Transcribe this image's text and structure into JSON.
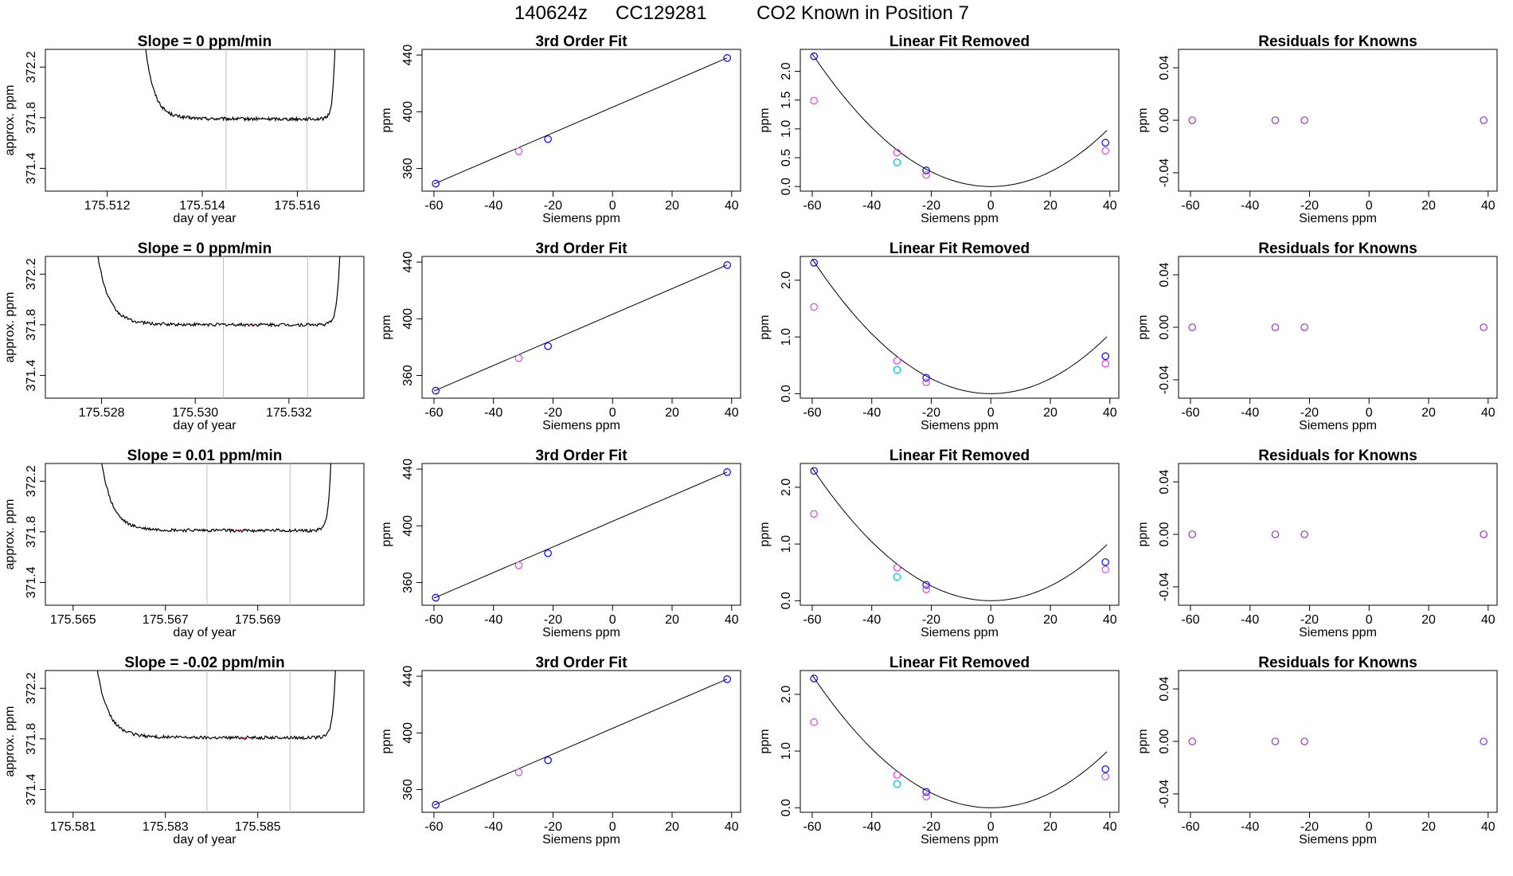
{
  "figure": {
    "title_parts": [
      "140624z",
      "CC129281",
      "CO2 Known in Position  7"
    ]
  },
  "colors": {
    "trace": "#000000",
    "vline": "#bebebe",
    "blue": "#0000ff",
    "magenta": "#dd44dd",
    "cyan": "#00bcd4",
    "purple": "#9a32cd"
  },
  "chart_data": [
    {
      "type": "line",
      "row": 0,
      "title": "Slope =  0  ppm/min",
      "xlabel": "day of year",
      "ylabel": "approx. ppm",
      "xlim": [
        175.5107,
        175.5174
      ],
      "ylim": [
        371.22,
        372.34
      ],
      "xticks": [
        175.512,
        175.514,
        175.516
      ],
      "xtick_labels": [
        "175.512",
        "175.514",
        "175.516"
      ],
      "yticks": [
        371.4,
        371.8,
        372.2
      ],
      "ytick_labels": [
        "371.4",
        "371.8",
        "372.2"
      ],
      "plateau": 371.79,
      "trace_start": 175.5128,
      "trace_end": 175.5168,
      "vlines": [
        175.5145,
        175.5162
      ],
      "red_marker": 175.5152
    },
    {
      "type": "scatter",
      "row": 0,
      "title": "3rd Order Fit",
      "xlabel": "Siemens ppm",
      "ylabel": "ppm",
      "xlim": [
        -64,
        43
      ],
      "ylim": [
        344,
        444
      ],
      "xticks": [
        -60,
        -40,
        -20,
        0,
        20,
        40
      ],
      "xtick_labels": [
        "-60",
        "-40",
        "-20",
        "0",
        "20",
        "40"
      ],
      "yticks": [
        360,
        400,
        440
      ],
      "ytick_labels": [
        "360",
        "400",
        "440"
      ],
      "line": [
        [
          -60,
          349
        ],
        [
          38.5,
          438
        ]
      ],
      "points": [
        {
          "x": -59.4,
          "y": 349.3,
          "color": "blue"
        },
        {
          "x": -31.5,
          "y": 372.2,
          "color": "magenta"
        },
        {
          "x": -21.7,
          "y": 380.7,
          "color": "blue"
        },
        {
          "x": 38.5,
          "y": 437.9,
          "color": "blue"
        }
      ]
    },
    {
      "type": "scatter",
      "row": 0,
      "title": "Linear Fit Removed",
      "xlabel": "Siemens ppm",
      "ylabel": "ppm",
      "xlim": [
        -64,
        43
      ],
      "ylim": [
        -0.08,
        2.38
      ],
      "xticks": [
        -60,
        -40,
        -20,
        0,
        20,
        40
      ],
      "xtick_labels": [
        "-60",
        "-40",
        "-20",
        "0",
        "20",
        "40"
      ],
      "yticks": [
        0.0,
        0.5,
        1.0,
        1.5,
        2.0
      ],
      "ytick_labels": [
        "0.0",
        "0.5",
        "1.0",
        "1.5",
        "2.0"
      ],
      "curve_coef": 0.00064,
      "points": [
        {
          "x": -59.4,
          "y": 2.26,
          "color": "blue"
        },
        {
          "x": -59.4,
          "y": 1.49,
          "color": "magenta"
        },
        {
          "x": -31.5,
          "y": 0.59,
          "color": "magenta"
        },
        {
          "x": -31.5,
          "y": 0.42,
          "color": "cyan"
        },
        {
          "x": -21.7,
          "y": 0.28,
          "color": "blue"
        },
        {
          "x": -21.7,
          "y": 0.2,
          "color": "magenta"
        },
        {
          "x": 38.5,
          "y": 0.76,
          "color": "blue"
        },
        {
          "x": 38.5,
          "y": 0.62,
          "color": "magenta"
        }
      ]
    },
    {
      "type": "scatter",
      "row": 0,
      "title": "Residuals for Knowns",
      "xlabel": "Siemens ppm",
      "ylabel": "ppm",
      "xlim": [
        -64,
        43
      ],
      "ylim": [
        -0.054,
        0.054
      ],
      "xticks": [
        -60,
        -40,
        -20,
        0,
        20,
        40
      ],
      "xtick_labels": [
        "-60",
        "-40",
        "-20",
        "0",
        "20",
        "40"
      ],
      "yticks": [
        -0.04,
        0.0,
        0.04
      ],
      "ytick_labels": [
        "-0.04",
        "0.00",
        "0.04"
      ],
      "points": [
        {
          "x": -59.4,
          "y": 0,
          "color": "purple"
        },
        {
          "x": -31.5,
          "y": 0,
          "color": "purple"
        },
        {
          "x": -21.7,
          "y": 0,
          "color": "purple"
        },
        {
          "x": 38.5,
          "y": 0,
          "color": "purple"
        }
      ]
    },
    {
      "type": "line",
      "row": 1,
      "title": "Slope =  0  ppm/min",
      "xlabel": "day of year",
      "ylabel": "approx. ppm",
      "xlim": [
        175.5268,
        175.5336
      ],
      "ylim": [
        371.22,
        372.34
      ],
      "xticks": [
        175.528,
        175.53,
        175.532
      ],
      "xtick_labels": [
        "175.528",
        "175.530",
        "175.532"
      ],
      "yticks": [
        371.4,
        371.8,
        372.2
      ],
      "ytick_labels": [
        "371.4",
        "371.8",
        "372.2"
      ],
      "plateau": 371.8,
      "trace_start": 175.5279,
      "trace_end": 175.5331,
      "vlines": [
        175.5306,
        175.5324
      ],
      "red_marker": 175.5312
    },
    {
      "type": "scatter",
      "row": 1,
      "title": "3rd Order Fit",
      "xlabel": "Siemens ppm",
      "ylabel": "ppm",
      "xlim": [
        -64,
        43
      ],
      "ylim": [
        344,
        444
      ],
      "xticks": [
        -60,
        -40,
        -20,
        0,
        20,
        40
      ],
      "xtick_labels": [
        "-60",
        "-40",
        "-20",
        "0",
        "20",
        "40"
      ],
      "yticks": [
        360,
        400,
        440
      ],
      "ytick_labels": [
        "360",
        "400",
        "440"
      ],
      "line": [
        [
          -60,
          349
        ],
        [
          38.5,
          438
        ]
      ],
      "points": [
        {
          "x": -59.4,
          "y": 349.3,
          "color": "blue"
        },
        {
          "x": -31.5,
          "y": 372.2,
          "color": "magenta"
        },
        {
          "x": -21.7,
          "y": 380.7,
          "color": "blue"
        },
        {
          "x": 38.5,
          "y": 437.9,
          "color": "blue"
        }
      ]
    },
    {
      "type": "scatter",
      "row": 1,
      "title": "Linear Fit Removed",
      "xlabel": "Siemens ppm",
      "ylabel": "ppm",
      "xlim": [
        -64,
        43
      ],
      "ylim": [
        -0.08,
        2.42
      ],
      "xticks": [
        -60,
        -40,
        -20,
        0,
        20,
        40
      ],
      "xtick_labels": [
        "-60",
        "-40",
        "-20",
        "0",
        "20",
        "40"
      ],
      "yticks": [
        0.0,
        1.0,
        2.0
      ],
      "ytick_labels": [
        "0.0",
        "1.0",
        "2.0"
      ],
      "curve_coef": 0.00066,
      "points": [
        {
          "x": -59.4,
          "y": 2.31,
          "color": "blue"
        },
        {
          "x": -59.4,
          "y": 1.53,
          "color": "magenta"
        },
        {
          "x": -31.5,
          "y": 0.58,
          "color": "magenta"
        },
        {
          "x": -31.5,
          "y": 0.42,
          "color": "cyan"
        },
        {
          "x": -21.7,
          "y": 0.28,
          "color": "blue"
        },
        {
          "x": -21.7,
          "y": 0.2,
          "color": "magenta"
        },
        {
          "x": 38.5,
          "y": 0.66,
          "color": "blue"
        },
        {
          "x": 38.5,
          "y": 0.53,
          "color": "magenta"
        }
      ]
    },
    {
      "type": "scatter",
      "row": 1,
      "title": "Residuals for Knowns",
      "xlabel": "Siemens ppm",
      "ylabel": "ppm",
      "xlim": [
        -64,
        43
      ],
      "ylim": [
        -0.054,
        0.054
      ],
      "xticks": [
        -60,
        -40,
        -20,
        0,
        20,
        40
      ],
      "xtick_labels": [
        "-60",
        "-40",
        "-20",
        "0",
        "20",
        "40"
      ],
      "yticks": [
        -0.04,
        0.0,
        0.04
      ],
      "ytick_labels": [
        "-0.04",
        "0.00",
        "0.04"
      ],
      "points": [
        {
          "x": -59.4,
          "y": 0,
          "color": "purple"
        },
        {
          "x": -31.5,
          "y": 0,
          "color": "purple"
        },
        {
          "x": -21.7,
          "y": 0,
          "color": "purple"
        },
        {
          "x": 38.5,
          "y": 0,
          "color": "purple"
        }
      ]
    },
    {
      "type": "line",
      "row": 2,
      "title": "Slope =  0.01  ppm/min",
      "xlabel": "day of year",
      "ylabel": "approx. ppm",
      "xlim": [
        175.5644,
        175.5713
      ],
      "ylim": [
        371.22,
        372.34
      ],
      "xticks": [
        175.565,
        175.567,
        175.569
      ],
      "xtick_labels": [
        "175.565",
        "175.567",
        "175.569"
      ],
      "yticks": [
        371.4,
        371.8,
        372.2
      ],
      "ytick_labels": [
        "371.4",
        "371.8",
        "372.2"
      ],
      "plateau": 371.81,
      "trace_start": 175.5656,
      "trace_end": 175.5706,
      "vlines": [
        175.5679,
        175.5697
      ],
      "red_marker": 175.5686
    },
    {
      "type": "scatter",
      "row": 2,
      "title": "3rd Order Fit",
      "xlabel": "Siemens ppm",
      "ylabel": "ppm",
      "xlim": [
        -64,
        43
      ],
      "ylim": [
        344,
        444
      ],
      "xticks": [
        -60,
        -40,
        -20,
        0,
        20,
        40
      ],
      "xtick_labels": [
        "-60",
        "-40",
        "-20",
        "0",
        "20",
        "40"
      ],
      "yticks": [
        360,
        400,
        440
      ],
      "ytick_labels": [
        "360",
        "400",
        "440"
      ],
      "line": [
        [
          -60,
          349
        ],
        [
          38.5,
          438
        ]
      ],
      "points": [
        {
          "x": -59.4,
          "y": 349.3,
          "color": "blue"
        },
        {
          "x": -31.5,
          "y": 372.2,
          "color": "magenta"
        },
        {
          "x": -21.7,
          "y": 380.7,
          "color": "blue"
        },
        {
          "x": 38.5,
          "y": 437.9,
          "color": "blue"
        }
      ]
    },
    {
      "type": "scatter",
      "row": 2,
      "title": "Linear Fit Removed",
      "xlabel": "Siemens ppm",
      "ylabel": "ppm",
      "xlim": [
        -64,
        43
      ],
      "ylim": [
        -0.08,
        2.42
      ],
      "xticks": [
        -60,
        -40,
        -20,
        0,
        20,
        40
      ],
      "xtick_labels": [
        "-60",
        "-40",
        "-20",
        "0",
        "20",
        "40"
      ],
      "yticks": [
        0.0,
        1.0,
        2.0
      ],
      "ytick_labels": [
        "0.0",
        "1.0",
        "2.0"
      ],
      "curve_coef": 0.00065,
      "points": [
        {
          "x": -59.4,
          "y": 2.29,
          "color": "blue"
        },
        {
          "x": -59.4,
          "y": 1.53,
          "color": "magenta"
        },
        {
          "x": -31.5,
          "y": 0.58,
          "color": "magenta"
        },
        {
          "x": -31.5,
          "y": 0.42,
          "color": "cyan"
        },
        {
          "x": -21.7,
          "y": 0.28,
          "color": "blue"
        },
        {
          "x": -21.7,
          "y": 0.2,
          "color": "magenta"
        },
        {
          "x": 38.5,
          "y": 0.68,
          "color": "blue"
        },
        {
          "x": 38.5,
          "y": 0.55,
          "color": "magenta"
        }
      ]
    },
    {
      "type": "scatter",
      "row": 2,
      "title": "Residuals for Knowns",
      "xlabel": "Siemens ppm",
      "ylabel": "ppm",
      "xlim": [
        -64,
        43
      ],
      "ylim": [
        -0.054,
        0.054
      ],
      "xticks": [
        -60,
        -40,
        -20,
        0,
        20,
        40
      ],
      "xtick_labels": [
        "-60",
        "-40",
        "-20",
        "0",
        "20",
        "40"
      ],
      "yticks": [
        -0.04,
        0.0,
        0.04
      ],
      "ytick_labels": [
        "-0.04",
        "0.00",
        "0.04"
      ],
      "points": [
        {
          "x": -59.4,
          "y": 0,
          "color": "purple"
        },
        {
          "x": -31.5,
          "y": 0,
          "color": "purple"
        },
        {
          "x": -21.7,
          "y": 0,
          "color": "purple"
        },
        {
          "x": 38.5,
          "y": 0,
          "color": "purple"
        }
      ]
    },
    {
      "type": "line",
      "row": 3,
      "title": "Slope =  -0.02  ppm/min",
      "xlabel": "day of year",
      "ylabel": "approx. ppm",
      "xlim": [
        175.5804,
        175.5873
      ],
      "ylim": [
        371.22,
        372.34
      ],
      "xticks": [
        175.581,
        175.583,
        175.585
      ],
      "xtick_labels": [
        "175.581",
        "175.583",
        "175.585"
      ],
      "yticks": [
        371.4,
        371.8,
        372.2
      ],
      "ytick_labels": [
        "371.4",
        "371.8",
        "372.2"
      ],
      "plateau": 371.81,
      "trace_start": 175.5815,
      "trace_end": 175.5867,
      "vlines": [
        175.5839,
        175.5857
      ],
      "red_marker": 175.5847
    },
    {
      "type": "scatter",
      "row": 3,
      "title": "3rd Order Fit",
      "xlabel": "Siemens ppm",
      "ylabel": "ppm",
      "xlim": [
        -64,
        43
      ],
      "ylim": [
        344,
        444
      ],
      "xticks": [
        -60,
        -40,
        -20,
        0,
        20,
        40
      ],
      "xtick_labels": [
        "-60",
        "-40",
        "-20",
        "0",
        "20",
        "40"
      ],
      "yticks": [
        360,
        400,
        440
      ],
      "ytick_labels": [
        "360",
        "400",
        "440"
      ],
      "line": [
        [
          -60,
          349
        ],
        [
          38.5,
          438
        ]
      ],
      "points": [
        {
          "x": -59.4,
          "y": 349.3,
          "color": "blue"
        },
        {
          "x": -31.5,
          "y": 372.2,
          "color": "magenta"
        },
        {
          "x": -21.7,
          "y": 380.7,
          "color": "blue"
        },
        {
          "x": 38.5,
          "y": 437.9,
          "color": "blue"
        }
      ]
    },
    {
      "type": "scatter",
      "row": 3,
      "title": "Linear Fit Removed",
      "xlabel": "Siemens ppm",
      "ylabel": "ppm",
      "xlim": [
        -64,
        43
      ],
      "ylim": [
        -0.08,
        2.42
      ],
      "xticks": [
        -60,
        -40,
        -20,
        0,
        20,
        40
      ],
      "xtick_labels": [
        "-60",
        "-40",
        "-20",
        "0",
        "20",
        "40"
      ],
      "yticks": [
        0.0,
        1.0,
        2.0
      ],
      "ytick_labels": [
        "0.0",
        "1.0",
        "2.0"
      ],
      "curve_coef": 0.00065,
      "points": [
        {
          "x": -59.4,
          "y": 2.28,
          "color": "blue"
        },
        {
          "x": -59.4,
          "y": 1.51,
          "color": "magenta"
        },
        {
          "x": -31.5,
          "y": 0.58,
          "color": "magenta"
        },
        {
          "x": -31.5,
          "y": 0.42,
          "color": "cyan"
        },
        {
          "x": -21.7,
          "y": 0.28,
          "color": "blue"
        },
        {
          "x": -21.7,
          "y": 0.2,
          "color": "magenta"
        },
        {
          "x": 38.5,
          "y": 0.68,
          "color": "blue"
        },
        {
          "x": 38.5,
          "y": 0.55,
          "color": "magenta"
        }
      ]
    },
    {
      "type": "scatter",
      "row": 3,
      "title": "Residuals for Knowns",
      "xlabel": "Siemens ppm",
      "ylabel": "ppm",
      "xlim": [
        -64,
        43
      ],
      "ylim": [
        -0.054,
        0.054
      ],
      "xticks": [
        -60,
        -40,
        -20,
        0,
        20,
        40
      ],
      "xtick_labels": [
        "-60",
        "-40",
        "-20",
        "0",
        "20",
        "40"
      ],
      "yticks": [
        -0.04,
        0.0,
        0.04
      ],
      "ytick_labels": [
        "-0.04",
        "0.00",
        "0.04"
      ],
      "points": [
        {
          "x": -59.4,
          "y": 0,
          "color": "purple"
        },
        {
          "x": -31.5,
          "y": 0,
          "color": "purple"
        },
        {
          "x": -21.7,
          "y": 0,
          "color": "purple"
        },
        {
          "x": 38.5,
          "y": 0,
          "color": "purple"
        }
      ]
    }
  ]
}
